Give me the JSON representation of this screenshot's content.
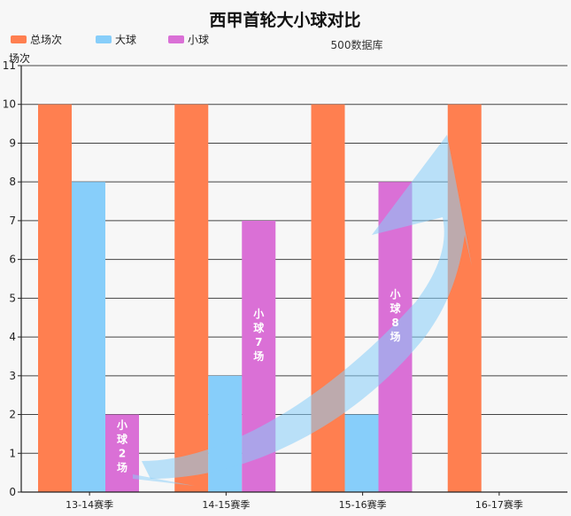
{
  "chart_data": {
    "type": "bar",
    "title": "西甲首轮大小球对比",
    "subtitle": "500数据库",
    "xlabel": "",
    "ylabel": "场次",
    "ylim": [
      0,
      11
    ],
    "y_ticks": [
      0,
      1,
      2,
      3,
      4,
      5,
      6,
      7,
      8,
      9,
      10,
      11
    ],
    "grid": true,
    "legend_position": "top-left",
    "categories": [
      "13-14赛季",
      "14-15赛季",
      "15-16赛季",
      "16-17赛季"
    ],
    "series": [
      {
        "name": "总场次",
        "color": "#ff7f50",
        "values": [
          10,
          10,
          10,
          10
        ]
      },
      {
        "name": "大球",
        "color": "#87cefa",
        "values": [
          8,
          3,
          2,
          null
        ]
      },
      {
        "name": "小球",
        "color": "#da70d6",
        "values": [
          2,
          7,
          8,
          null
        ]
      }
    ],
    "annotations": [
      {
        "category_index": 0,
        "series_index": 2,
        "text": "小球2场"
      },
      {
        "category_index": 1,
        "series_index": 2,
        "text": "小球7场"
      },
      {
        "category_index": 2,
        "series_index": 2,
        "text": "小球8场"
      }
    ],
    "trend_arrow": {
      "color": "#87cefa"
    }
  }
}
